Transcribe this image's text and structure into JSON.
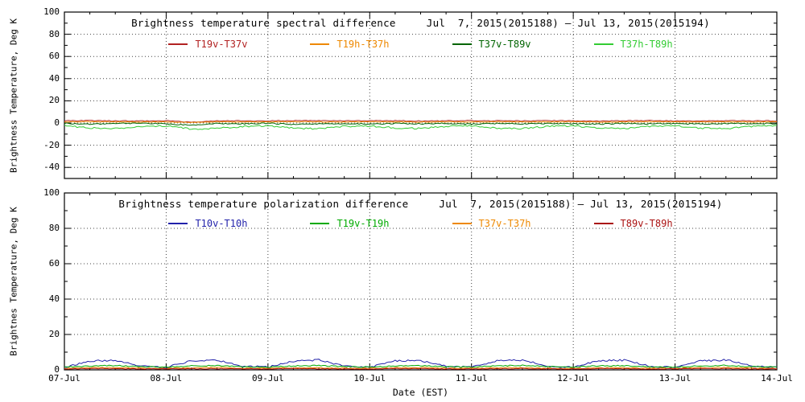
{
  "page": {
    "background": "#ffffff"
  },
  "chart_data": [
    {
      "type": "line",
      "title": "Brightness temperature spectral difference",
      "date_range": "Jul  7, 2015(2015188) — Jul 13, 2015(2015194)",
      "ylabel": "Brightness Temperature, Deg K",
      "ylim": [
        -50,
        100
      ],
      "yticks": [
        -40,
        -20,
        0,
        20,
        40,
        60,
        80,
        100
      ],
      "x_range_days": [
        0,
        7
      ],
      "anchor_interval_hours": 6,
      "grid": "dotted",
      "legend_position": "top-center-inside",
      "series": [
        {
          "name": "T19v-T37v",
          "color": "#b22222",
          "noise": 0.35,
          "anchors": [
            2.0,
            2.2,
            2.0,
            1.8,
            2.1,
            0.8,
            2.0,
            2.0,
            1.9,
            2.2,
            2.1,
            1.9,
            2.0,
            2.1,
            1.8,
            2.0,
            2.2,
            2.0,
            1.9,
            2.1,
            2.0,
            1.8,
            2.0,
            2.2,
            1.9,
            2.0,
            2.1,
            1.9,
            2.0
          ]
        },
        {
          "name": "T19h-T37h",
          "color": "#ee8800",
          "noise": 0.3,
          "anchors": [
            1.0,
            1.2,
            1.1,
            0.9,
            1.0,
            0.5,
            1.1,
            1.0,
            0.9,
            1.2,
            1.0,
            0.9,
            1.1,
            1.0,
            0.9,
            1.1,
            1.0,
            1.2,
            0.9,
            1.0,
            1.1,
            0.9,
            1.0,
            1.2,
            1.0,
            0.9,
            1.1,
            1.0,
            1.0
          ]
        },
        {
          "name": "T37v-T89v",
          "color": "#006400",
          "noise": 0.5,
          "anchors": [
            -0.3,
            -1.0,
            -0.5,
            -0.2,
            -0.6,
            -2.2,
            -0.4,
            -0.8,
            -0.3,
            -1.1,
            -0.6,
            -0.3,
            -0.9,
            -0.4,
            -0.7,
            -0.3,
            -1.0,
            -0.5,
            -0.8,
            -0.4,
            -0.6,
            -1.0,
            -0.3,
            -0.7,
            -0.5,
            -0.9,
            -0.4,
            -0.6,
            -0.5
          ]
        },
        {
          "name": "T37h-T89h",
          "color": "#33cc33",
          "noise": 0.7,
          "anchors": [
            -2.5,
            -4.5,
            -5.0,
            -3.0,
            -2.6,
            -5.5,
            -4.8,
            -3.2,
            -2.4,
            -4.6,
            -5.1,
            -3.1,
            -2.7,
            -4.4,
            -4.9,
            -3.0,
            -2.5,
            -4.7,
            -5.0,
            -2.9,
            -2.6,
            -4.5,
            -4.8,
            -3.1,
            -2.5,
            -4.6,
            -5.0,
            -3.0,
            -2.7
          ]
        }
      ]
    },
    {
      "type": "line",
      "title": "Brightness temperature polarization difference",
      "date_range": "Jul  7, 2015(2015188) — Jul 13, 2015(2015194)",
      "ylabel": "Brightnes Temperature, Deg K",
      "xlabel": "Date (EST)",
      "ylim": [
        0,
        100
      ],
      "yticks": [
        0,
        20,
        40,
        60,
        80,
        100
      ],
      "x_range_days": [
        0,
        7
      ],
      "x_tick_labels": [
        "07-Jul",
        "08-Jul",
        "09-Jul",
        "10-Jul",
        "11-Jul",
        "12-Jul",
        "13-Jul",
        "14-Jul"
      ],
      "anchor_interval_hours": 6,
      "grid": "dotted",
      "legend_position": "top-center-inside",
      "series": [
        {
          "name": "T10v-T10h",
          "color": "#2222aa",
          "noise": 0.5,
          "anchors": [
            1.5,
            5.0,
            5.5,
            2.0,
            1.4,
            5.2,
            5.4,
            2.1,
            1.6,
            4.9,
            5.6,
            2.0,
            1.5,
            5.1,
            5.3,
            1.9,
            1.6,
            5.0,
            5.5,
            2.2,
            1.4,
            5.2,
            5.4,
            2.0,
            1.5,
            4.9,
            5.6,
            2.1,
            1.5
          ]
        },
        {
          "name": "T19v-T19h",
          "color": "#00aa00",
          "noise": 0.3,
          "anchors": [
            1.5,
            2.2,
            2.5,
            1.8,
            1.6,
            2.3,
            2.4,
            1.7,
            1.5,
            2.2,
            2.5,
            1.8,
            1.6,
            2.1,
            2.4,
            1.7,
            1.5,
            2.3,
            2.5,
            1.8,
            1.6,
            2.2,
            2.4,
            1.7,
            1.5,
            2.2,
            2.5,
            1.8,
            1.6
          ]
        },
        {
          "name": "T37v-T37h",
          "color": "#ee8800",
          "noise": 0.25,
          "anchors": [
            0.8,
            1.2,
            1.3,
            0.9,
            0.8,
            1.1,
            1.3,
            0.9,
            0.8,
            1.2,
            1.2,
            0.9,
            0.8,
            1.1,
            1.3,
            0.9,
            0.8,
            1.2,
            1.3,
            0.9,
            0.8,
            1.1,
            1.2,
            0.9,
            0.8,
            1.2,
            1.3,
            0.9,
            0.8
          ]
        },
        {
          "name": "T89v-T89h",
          "color": "#aa1111",
          "noise": 0.2,
          "anchors": [
            0.5,
            0.7,
            0.7,
            0.5,
            0.5,
            0.6,
            0.7,
            0.5,
            0.5,
            0.7,
            0.6,
            0.5,
            0.5,
            0.7,
            0.7,
            0.5,
            0.5,
            0.6,
            0.7,
            0.5,
            0.5,
            0.7,
            0.6,
            0.5,
            0.5,
            0.7,
            0.7,
            0.5,
            0.5
          ]
        }
      ]
    }
  ]
}
